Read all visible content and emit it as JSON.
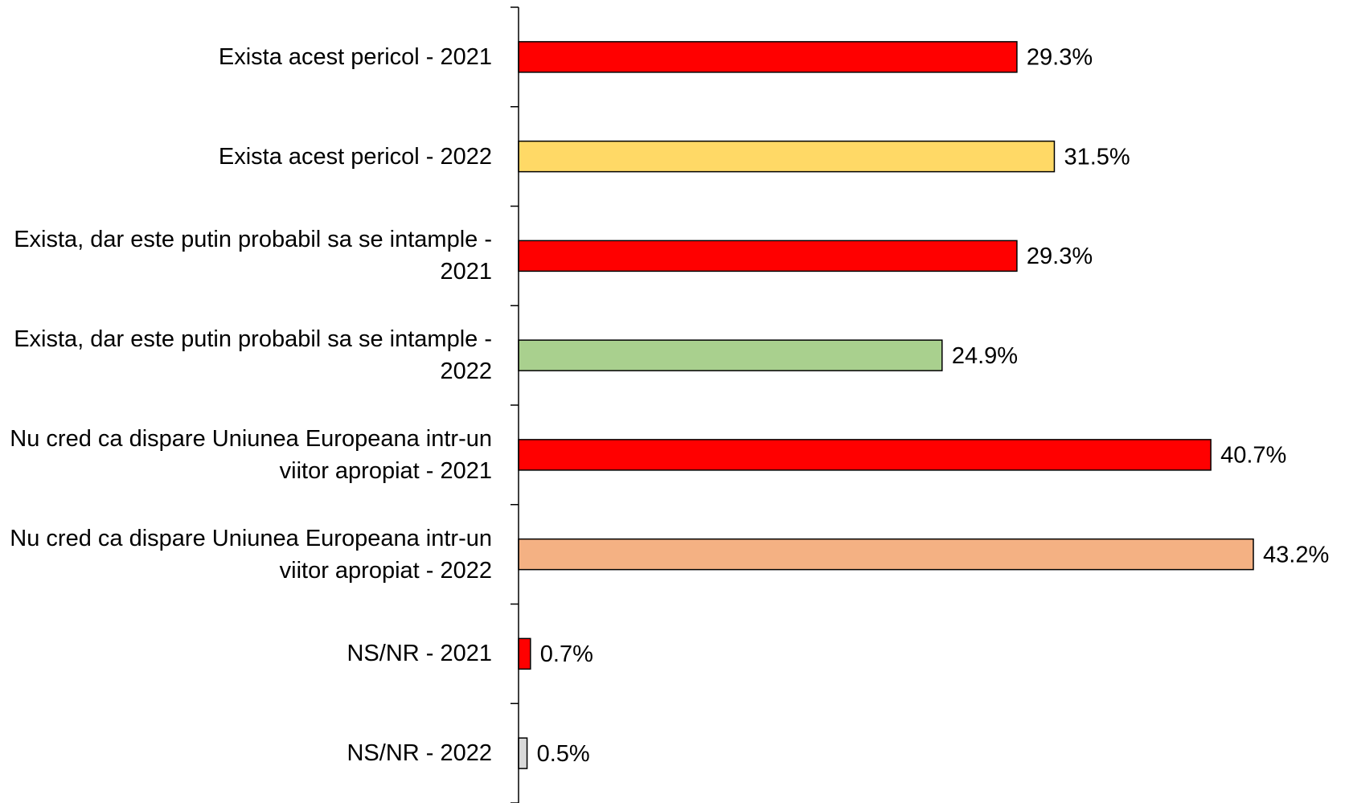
{
  "chart_data": {
    "type": "bar",
    "orientation": "horizontal",
    "categories": [
      "Exista acest pericol - 2021",
      "Exista acest pericol - 2022",
      "Exista, dar este putin probabil sa se intample - 2021",
      "Exista, dar este putin probabil sa se intample - 2022",
      "Nu cred ca dispare Uniunea Europeana intr-un viitor apropiat - 2021",
      "Nu cred ca dispare Uniunea Europeana intr-un viitor apropiat - 2022",
      "NS/NR - 2021",
      "NS/NR - 2022"
    ],
    "values": [
      29.3,
      31.5,
      29.3,
      24.9,
      40.7,
      43.2,
      0.7,
      0.5
    ],
    "value_labels": [
      "29.3%",
      "31.5%",
      "29.3%",
      "24.9%",
      "40.7%",
      "43.2%",
      "0.7%",
      "0.5%"
    ],
    "colors": [
      "#ff0000",
      "#ffd966",
      "#ff0000",
      "#a9d08e",
      "#ff0000",
      "#f4b183",
      "#ff0000",
      "#d9d9d9"
    ]
  }
}
